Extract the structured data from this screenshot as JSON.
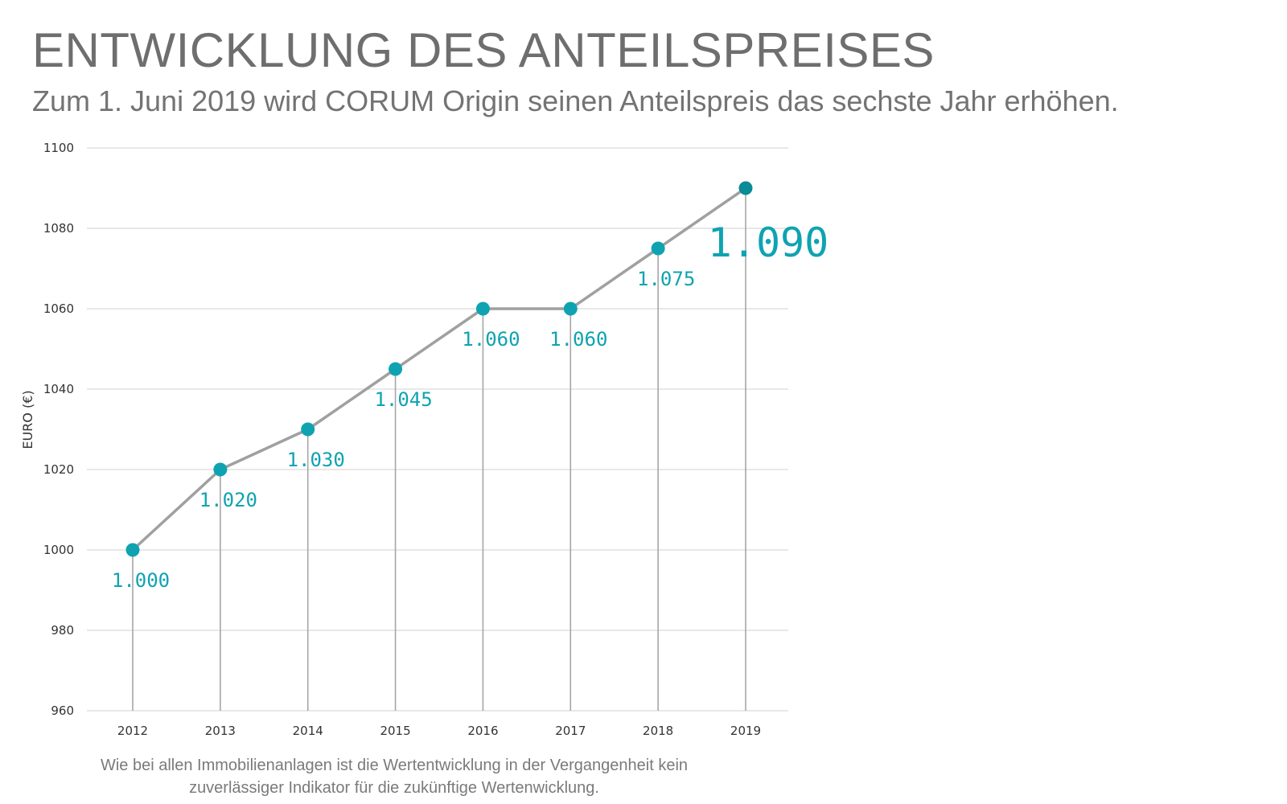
{
  "header": {
    "title": "ENTWICKLUNG DES ANTEILSPREISES",
    "subtitle": "Zum 1. Juni 2019 wird CORUM Origin seinen Anteilspreis das sechste Jahr erhöhen."
  },
  "footnote": {
    "line1": "Wie bei allen Immobilienanlagen ist die Wertentwicklung in der Vergangenheit kein",
    "line2": "zuverlässiger Indikator für die zukünftige Wertenwicklung."
  },
  "colors": {
    "accent": "#0fa3b1",
    "accent_dark": "#0b8b95",
    "line": "#a0a0a0",
    "grid": "#d9d9d9",
    "stem": "#a6a6a6"
  },
  "chart_data": {
    "type": "line",
    "title": "ENTWICKLUNG DES ANTEILSPREISES",
    "xlabel": "",
    "ylabel": "EURO (€)",
    "categories": [
      "2012",
      "2013",
      "2014",
      "2015",
      "2016",
      "2017",
      "2018",
      "2019"
    ],
    "values": [
      1000,
      1020,
      1030,
      1045,
      1060,
      1060,
      1075,
      1090
    ],
    "data_labels": [
      "1.000",
      "1.020",
      "1.030",
      "1.045",
      "1.060",
      "1.060",
      "1.075",
      "1.090"
    ],
    "highlight_index": 7,
    "ylim": [
      960,
      1100
    ],
    "yticks": [
      "960",
      "980",
      "1000",
      "1020",
      "1040",
      "1060",
      "1080",
      "1100"
    ],
    "grid": true,
    "legend": "none"
  }
}
